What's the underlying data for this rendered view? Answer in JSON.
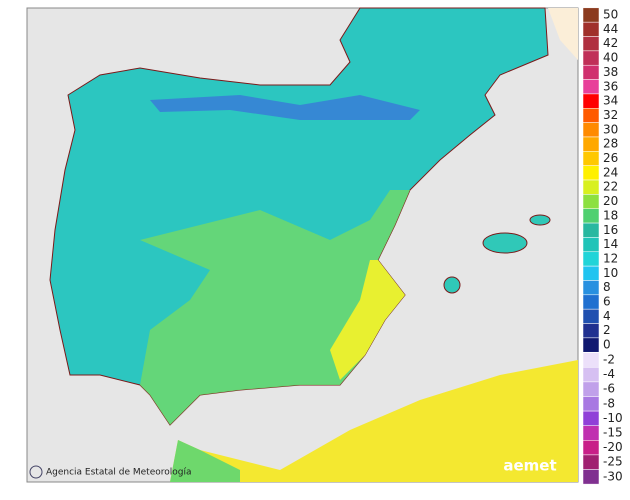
{
  "legend": {
    "positive": [
      {
        "label": "50",
        "color": "#8b3a1e"
      },
      {
        "label": "44",
        "color": "#a0302a"
      },
      {
        "label": "42",
        "color": "#b03040"
      },
      {
        "label": "40",
        "color": "#c03058"
      },
      {
        "label": "38",
        "color": "#d0306e"
      },
      {
        "label": "36",
        "color": "#e8409a"
      },
      {
        "label": "34",
        "color": "#ff0000"
      },
      {
        "label": "32",
        "color": "#ff5a00"
      },
      {
        "label": "30",
        "color": "#ff8a00"
      },
      {
        "label": "28",
        "color": "#ffa800"
      },
      {
        "label": "26",
        "color": "#ffc800"
      },
      {
        "label": "24",
        "color": "#fff000"
      },
      {
        "label": "22",
        "color": "#d8f020"
      },
      {
        "label": "20",
        "color": "#8ce040"
      },
      {
        "label": "18",
        "color": "#50d070"
      },
      {
        "label": "16",
        "color": "#28b8a0"
      },
      {
        "label": "14",
        "color": "#20c4b8"
      },
      {
        "label": "12",
        "color": "#20d4d8"
      },
      {
        "label": "10",
        "color": "#20c4f0"
      },
      {
        "label": "8",
        "color": "#2890e0"
      },
      {
        "label": "6",
        "color": "#2070d0"
      },
      {
        "label": "4",
        "color": "#2050b0"
      },
      {
        "label": "2",
        "color": "#203090"
      },
      {
        "label": "0",
        "color": "#101870"
      }
    ],
    "negative": [
      {
        "label": "-2",
        "color": "#ece0fa"
      },
      {
        "label": "-4",
        "color": "#d6c0f2"
      },
      {
        "label": "-6",
        "color": "#c0a0ea"
      },
      {
        "label": "-8",
        "color": "#a878e2"
      },
      {
        "label": "-10",
        "color": "#9040d8"
      },
      {
        "label": "-15",
        "color": "#c030b0"
      },
      {
        "label": "-20",
        "color": "#c82088"
      },
      {
        "label": "-25",
        "color": "#a02070"
      },
      {
        "label": "-30",
        "color": "#803090"
      }
    ]
  },
  "credit": "Agencia Estatal de Meteorología",
  "logo": "aemet"
}
